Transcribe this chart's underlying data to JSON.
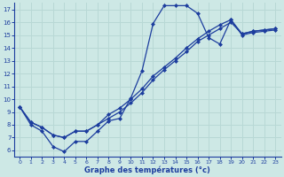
{
  "xlabel": "Graphe des températures (°c)",
  "bg_color": "#cde8e5",
  "line_color": "#1c3d9e",
  "grid_color": "#b8d8d5",
  "xlim": [
    -0.5,
    23.5
  ],
  "ylim": [
    5.5,
    17.5
  ],
  "xticks": [
    0,
    1,
    2,
    3,
    4,
    5,
    6,
    7,
    8,
    9,
    10,
    11,
    12,
    13,
    14,
    15,
    16,
    17,
    18,
    19,
    20,
    21,
    22,
    23
  ],
  "yticks": [
    6,
    7,
    8,
    9,
    10,
    11,
    12,
    13,
    14,
    15,
    16,
    17
  ],
  "series1_x": [
    0,
    1,
    2,
    3,
    4,
    5,
    6,
    7,
    8,
    9,
    10,
    11,
    12,
    13,
    14,
    15,
    16,
    17,
    18,
    19,
    20,
    21,
    22,
    23
  ],
  "series1_y": [
    9.4,
    8.0,
    7.5,
    6.3,
    5.9,
    6.7,
    6.7,
    7.5,
    8.3,
    8.5,
    10.1,
    12.2,
    15.9,
    17.3,
    17.3,
    17.3,
    16.7,
    14.8,
    14.3,
    16.2,
    15.0,
    15.2,
    15.3,
    15.4
  ],
  "series2_x": [
    0,
    1,
    2,
    3,
    4,
    5,
    6,
    7,
    8,
    9,
    10,
    11,
    12,
    13,
    14,
    15,
    16,
    17,
    18,
    19,
    20,
    21,
    22,
    23
  ],
  "series2_y": [
    9.4,
    8.2,
    7.8,
    7.2,
    7.0,
    7.5,
    7.5,
    8.0,
    8.8,
    9.3,
    10.0,
    10.8,
    11.8,
    12.5,
    13.2,
    14.0,
    14.7,
    15.3,
    15.8,
    16.2,
    15.1,
    15.3,
    15.4,
    15.5
  ],
  "series3_x": [
    0,
    1,
    2,
    3,
    4,
    5,
    6,
    7,
    8,
    9,
    10,
    11,
    12,
    13,
    14,
    15,
    16,
    17,
    18,
    19,
    20,
    21,
    22,
    23
  ],
  "series3_y": [
    9.4,
    8.2,
    7.8,
    7.2,
    7.0,
    7.5,
    7.5,
    8.0,
    8.5,
    9.0,
    9.7,
    10.5,
    11.5,
    12.3,
    13.0,
    13.7,
    14.5,
    15.0,
    15.5,
    16.0,
    15.1,
    15.3,
    15.4,
    15.5
  ]
}
